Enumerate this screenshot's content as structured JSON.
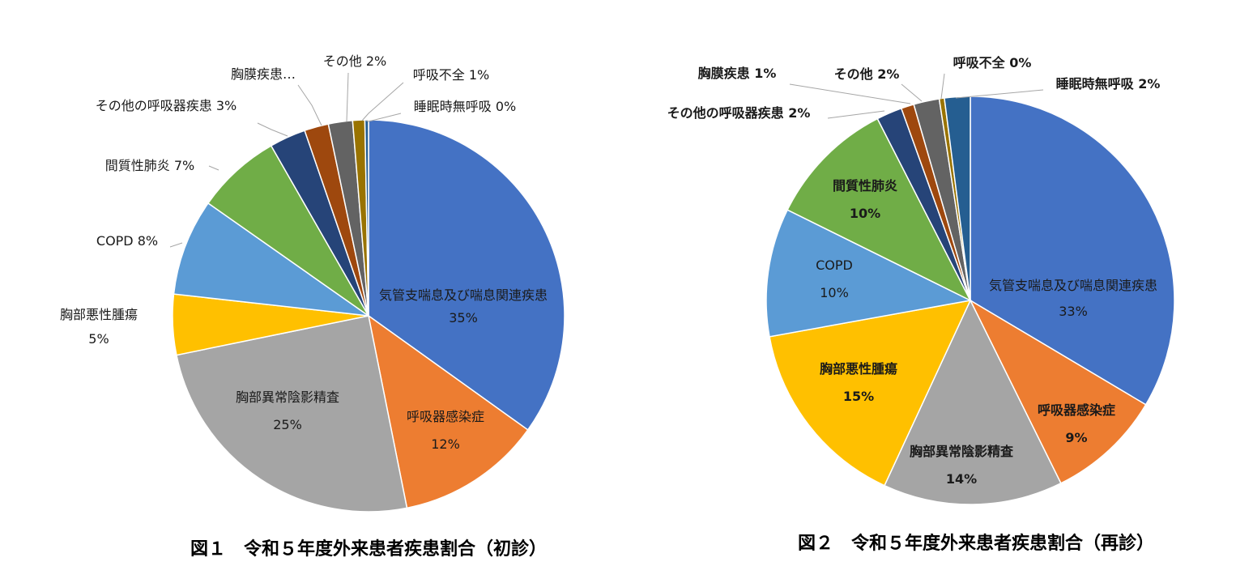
{
  "colors": {
    "気管支喘息及び喘息関連疾患": "#4472C4",
    "呼吸器感染症": "#ED7D31",
    "胸部異常陰影精査": "#A5A5A5",
    "胸部悪性腫瘍": "#FFC000",
    "COPD": "#5B9BD5",
    "間質性肺炎": "#70AD47",
    "その他の呼吸器疾患": "#264478",
    "胸膜疾患": "#9E480E",
    "その他": "#636363",
    "呼吸不全": "#997300",
    "睡眠時無呼吸": "#255E91"
  },
  "chart_data": [
    {
      "type": "pie",
      "title": "図１　令和５年度外来患者疾患割合（初診）",
      "start_angle_deg": 0,
      "direction": "clockwise",
      "slices": [
        {
          "name": "気管支喘息及び喘息関連疾患",
          "value": 35,
          "label": "35%"
        },
        {
          "name": "呼吸器感染症",
          "value": 12,
          "label": "12%"
        },
        {
          "name": "胸部異常陰影精査",
          "value": 25,
          "label": "25%"
        },
        {
          "name": "胸部悪性腫瘍",
          "value": 5,
          "label": "5%"
        },
        {
          "name": "COPD",
          "value": 8,
          "label": "8%"
        },
        {
          "name": "間質性肺炎",
          "value": 7,
          "label": "7%"
        },
        {
          "name": "その他の呼吸器疾患",
          "value": 3,
          "label": "3%"
        },
        {
          "name": "胸膜疾患",
          "value": 2,
          "label": "胸膜疾患…"
        },
        {
          "name": "その他",
          "value": 2,
          "label": "2%"
        },
        {
          "name": "呼吸不全",
          "value": 1,
          "label": "1%"
        },
        {
          "name": "睡眠時無呼吸",
          "value": 0.3,
          "label": "0%"
        }
      ]
    },
    {
      "type": "pie",
      "title": "図２　令和５年度外来患者疾患割合（再診）",
      "start_angle_deg": 0,
      "direction": "clockwise",
      "slices": [
        {
          "name": "気管支喘息及び喘息関連疾患",
          "value": 33,
          "label": "33%"
        },
        {
          "name": "呼吸器感染症",
          "value": 9,
          "label": "9%"
        },
        {
          "name": "胸部異常陰影精査",
          "value": 14,
          "label": "14%"
        },
        {
          "name": "胸部悪性腫瘍",
          "value": 15,
          "label": "15%"
        },
        {
          "name": "COPD",
          "value": 10,
          "label": "10%"
        },
        {
          "name": "間質性肺炎",
          "value": 10,
          "label": "10%"
        },
        {
          "name": "その他の呼吸器疾患",
          "value": 2,
          "label": "2%"
        },
        {
          "name": "胸膜疾患",
          "value": 1,
          "label": "1%"
        },
        {
          "name": "その他",
          "value": 2,
          "label": "2%"
        },
        {
          "name": "呼吸不全",
          "value": 0.4,
          "label": "0%"
        },
        {
          "name": "睡眠時無呼吸",
          "value": 2,
          "label": "2%"
        }
      ]
    }
  ]
}
